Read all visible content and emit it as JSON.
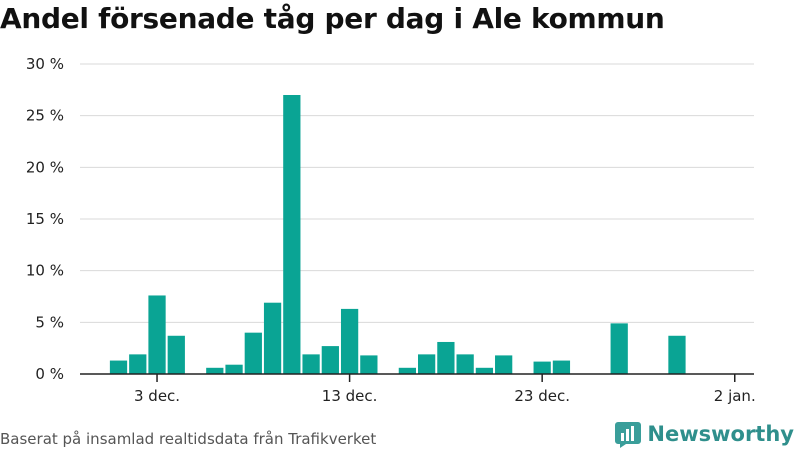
{
  "title": "Andel försenade tåg per dag i Ale kommun",
  "source": "Baserat på insamlad realtidsdata från Trafikverket",
  "brand": {
    "name": "Newsworthy",
    "icon": "bar-chart-logo-icon",
    "color": "#3a9e9a"
  },
  "colors": {
    "bar": "#0aa494",
    "grid": "#d9d9d9",
    "axis": "#222222"
  },
  "chart_data": {
    "type": "bar",
    "title": "Andel försenade tåg per dag i Ale kommun",
    "xlabel": "",
    "ylabel": "",
    "ylim": [
      0,
      30
    ],
    "yticks": [
      0,
      5,
      10,
      15,
      20,
      25,
      30
    ],
    "ytick_labels": [
      "0 %",
      "5 %",
      "10 %",
      "15 %",
      "20 %",
      "25 %",
      "30 %"
    ],
    "xticks": [
      "2024-12-03",
      "2024-12-13",
      "2024-12-23",
      "2025-01-02"
    ],
    "xtick_labels": [
      "3 dec.",
      "13 dec.",
      "23 dec.",
      "2 jan."
    ],
    "xlim": [
      "2024-11-29",
      "2025-01-03"
    ],
    "grid": true,
    "dates": [
      "2024-12-01",
      "2024-12-02",
      "2024-12-03",
      "2024-12-04",
      "2024-12-05",
      "2024-12-06",
      "2024-12-07",
      "2024-12-08",
      "2024-12-09",
      "2024-12-10",
      "2024-12-11",
      "2024-12-12",
      "2024-12-13",
      "2024-12-14",
      "2024-12-15",
      "2024-12-16",
      "2024-12-17",
      "2024-12-18",
      "2024-12-19",
      "2024-12-20",
      "2024-12-21",
      "2024-12-22",
      "2024-12-23",
      "2024-12-24",
      "2024-12-25",
      "2024-12-26",
      "2024-12-27",
      "2024-12-28",
      "2024-12-29",
      "2024-12-30",
      "2024-12-31",
      "2025-01-01"
    ],
    "values": [
      1.3,
      1.9,
      7.6,
      3.7,
      0,
      0.6,
      0.9,
      4.0,
      6.9,
      27.0,
      1.9,
      2.7,
      6.3,
      1.8,
      0,
      0.6,
      1.9,
      3.1,
      1.9,
      0.6,
      1.8,
      0,
      1.2,
      1.3,
      0,
      0,
      4.9,
      0,
      0,
      3.7,
      0,
      0
    ]
  }
}
